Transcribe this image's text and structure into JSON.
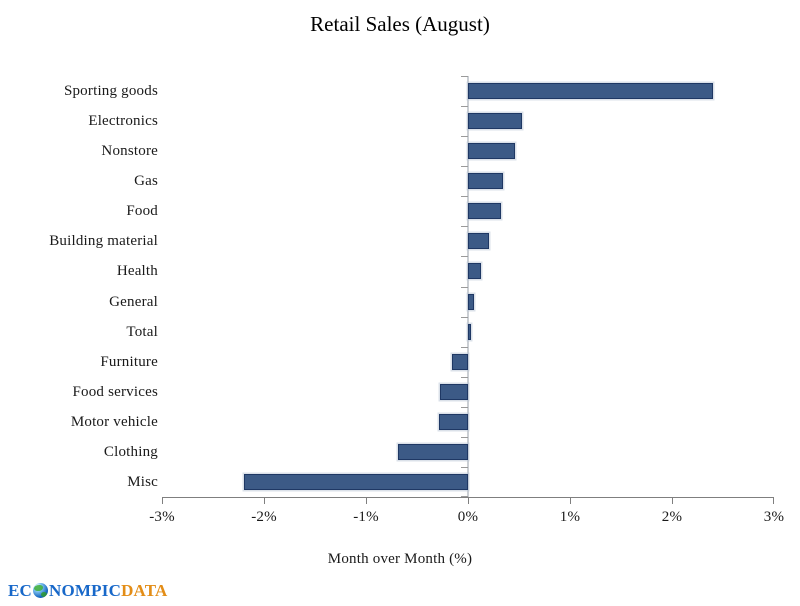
{
  "chart": {
    "title": "Retail Sales (August)",
    "xlabel": "Month over Month (%)"
  },
  "chart_data": {
    "type": "bar",
    "orientation": "horizontal",
    "title": "Retail Sales (August)",
    "xlabel": "Month over Month (%)",
    "categories": [
      "Sporting goods",
      "Electronics",
      "Nonstore",
      "Gas",
      "Food",
      "Building material",
      "Health",
      "General",
      "Total",
      "Furniture",
      "Food services",
      "Motor vehicle",
      "Clothing",
      "Misc"
    ],
    "values": [
      2.4,
      0.53,
      0.46,
      0.34,
      0.32,
      0.21,
      0.13,
      0.06,
      0.03,
      -0.16,
      -0.27,
      -0.28,
      -0.69,
      -2.2
    ],
    "xlim": [
      -3,
      3
    ],
    "x_ticks": [
      -3,
      -2,
      -1,
      0,
      1,
      2,
      3
    ],
    "x_tick_labels": [
      "-3%",
      "-2%",
      "-1%",
      "0%",
      "1%",
      "2%",
      "3%"
    ],
    "grid": false,
    "legend": false,
    "bar_color": "#3C5A86",
    "bar_border_color": "#1F3864"
  },
  "brand": {
    "text_ec": "EC",
    "globe_icon": "globe-icon",
    "text_nompic": "NOMPIC",
    "text_data": "DATA",
    "blue": "#1868C9",
    "orange": "#E38D17"
  }
}
